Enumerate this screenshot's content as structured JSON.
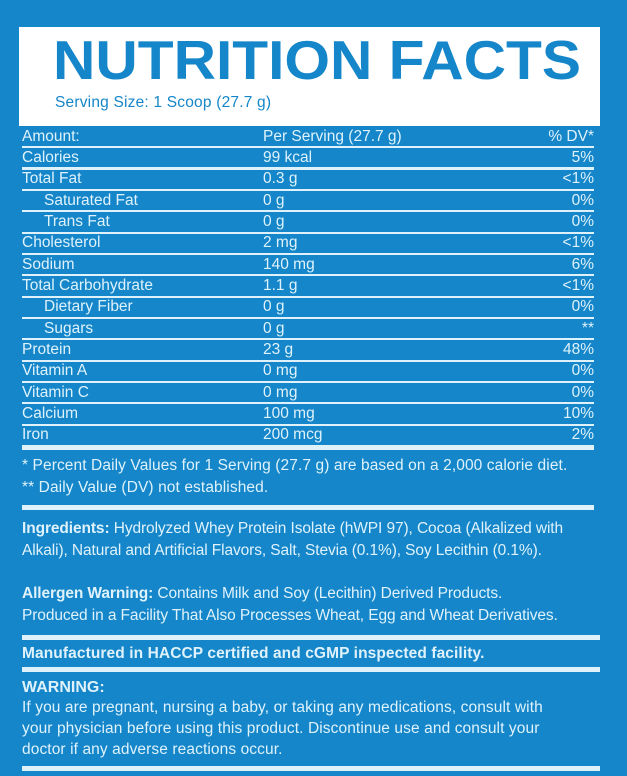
{
  "header": {
    "title": "NUTRITION FACTS",
    "serving_size": "Serving Size: 1 Scoop (27.7 g)"
  },
  "table": {
    "columns": {
      "amount": "Amount:",
      "per_serving": "Per Serving (27.7 g)",
      "dv": "% DV*"
    },
    "rows": [
      {
        "label": "Calories",
        "value": "99 kcal",
        "dv": "5%",
        "indent": false
      },
      {
        "label": "Total Fat",
        "value": "0.3 g",
        "dv": "<1%",
        "indent": false
      },
      {
        "label": "Saturated Fat",
        "value": "0 g",
        "dv": "0%",
        "indent": true
      },
      {
        "label": "Trans Fat",
        "value": "0 g",
        "dv": "0%",
        "indent": true
      },
      {
        "label": "Cholesterol",
        "value": "2 mg",
        "dv": "<1%",
        "indent": false
      },
      {
        "label": "Sodium",
        "value": "140 mg",
        "dv": "6%",
        "indent": false
      },
      {
        "label": "Total Carbohydrate",
        "value": "1.1 g",
        "dv": "<1%",
        "indent": false
      },
      {
        "label": "Dietary Fiber",
        "value": "0 g",
        "dv": "0%",
        "indent": true
      },
      {
        "label": "Sugars",
        "value": "0 g",
        "dv": "**",
        "indent": true
      },
      {
        "label": "Protein",
        "value": "23 g",
        "dv": "48%",
        "indent": false
      },
      {
        "label": "Vitamin A",
        "value": "0 mg",
        "dv": "0%",
        "indent": false
      },
      {
        "label": "Vitamin C",
        "value": "0 mg",
        "dv": "0%",
        "indent": false
      },
      {
        "label": "Calcium",
        "value": "100 mg",
        "dv": "10%",
        "indent": false
      },
      {
        "label": "Iron",
        "value": "200 mcg",
        "dv": "2%",
        "indent": false
      }
    ]
  },
  "footnotes": {
    "line1": "* Percent Daily Values for 1 Serving (27.7 g) are based on a 2,000 calorie diet.",
    "line2": "** Daily Value (DV) not established."
  },
  "ingredients": {
    "label": "Ingredients:",
    "text": " Hydrolyzed Whey Protein Isolate (hWPI 97), Cocoa (Alkalized with\nAlkali), Natural and Artificial Flavors, Salt, Stevia (0.1%), Soy Lecithin (0.1%)."
  },
  "allergen": {
    "label": "Allergen Warning:",
    "text": " Contains Milk and Soy (Lecithin) Derived Products.\nProduced in a Facility That Also Processes Wheat, Egg and Wheat Derivatives."
  },
  "manufactured": "Manufactured in HACCP certified and cGMP inspected facility.",
  "warning": {
    "title": "WARNING:",
    "text": "If you are pregnant, nursing a baby, or taking any medications, consult with\nyour physician before using this product. Discontinue use and consult your\ndoctor if any adverse reactions occur."
  },
  "colors": {
    "background_blue": "#1486c9",
    "text_light": "#dff2fb",
    "header_box": "#ffffff"
  }
}
